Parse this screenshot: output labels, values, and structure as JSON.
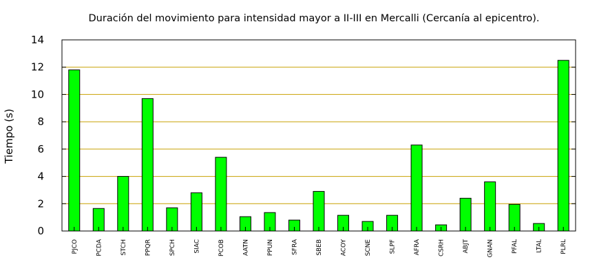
{
  "chart_data": {
    "type": "bar",
    "title": "Duración del movimiento para intensidad mayor a II-III en Mercalli (Cercanía al epicentro).",
    "xlabel": "",
    "ylabel": "Tiempo (s)",
    "ylim": [
      0,
      14
    ],
    "yticks": [
      "0",
      "2",
      "4",
      "6",
      "8",
      "10",
      "12",
      "14"
    ],
    "grid": true,
    "legend": "none",
    "categories": [
      "PJCO",
      "PCDA",
      "STCH",
      "PPQR",
      "SPCH",
      "SIAC",
      "PCOB",
      "AATN",
      "PPUN",
      "SFRA",
      "SBEB",
      "ACOY",
      "SCNE",
      "SLPF",
      "AFRA",
      "CSRH",
      "ABJT",
      "GNAN",
      "PFAL",
      "LTAL",
      "PLRL"
    ],
    "values": [
      11.8,
      1.65,
      4.0,
      9.7,
      1.7,
      2.8,
      5.4,
      1.05,
      1.35,
      0.8,
      2.9,
      1.15,
      0.7,
      1.15,
      6.3,
      0.45,
      2.4,
      3.6,
      1.95,
      0.55,
      12.5
    ],
    "colors": {
      "bar": "#00ff00",
      "bar_edge": "#000000",
      "grid": "#c8a000",
      "axis": "#000000"
    }
  }
}
